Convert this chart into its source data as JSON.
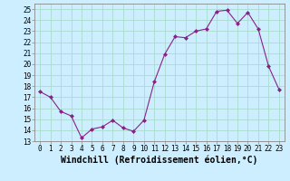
{
  "x": [
    0,
    1,
    2,
    3,
    4,
    5,
    6,
    7,
    8,
    9,
    10,
    11,
    12,
    13,
    14,
    15,
    16,
    17,
    18,
    19,
    20,
    21,
    22,
    23
  ],
  "y": [
    17.5,
    17.0,
    15.7,
    15.3,
    13.3,
    14.1,
    14.3,
    14.9,
    14.2,
    13.9,
    14.9,
    18.4,
    20.9,
    22.5,
    22.4,
    23.0,
    23.2,
    24.8,
    24.9,
    23.7,
    24.7,
    23.2,
    19.8,
    17.7
  ],
  "line_color": "#882288",
  "marker": "D",
  "marker_size": 2,
  "bg_color": "#cceeff",
  "grid_color": "#aaddcc",
  "xlabel": "Windchill (Refroidissement éolien,°C)",
  "xlim": [
    -0.5,
    23.5
  ],
  "ylim": [
    13,
    25.5
  ],
  "yticks": [
    13,
    14,
    15,
    16,
    17,
    18,
    19,
    20,
    21,
    22,
    23,
    24,
    25
  ],
  "xticks": [
    0,
    1,
    2,
    3,
    4,
    5,
    6,
    7,
    8,
    9,
    10,
    11,
    12,
    13,
    14,
    15,
    16,
    17,
    18,
    19,
    20,
    21,
    22,
    23
  ],
  "tick_fontsize": 5.5,
  "xlabel_fontsize": 7.0
}
